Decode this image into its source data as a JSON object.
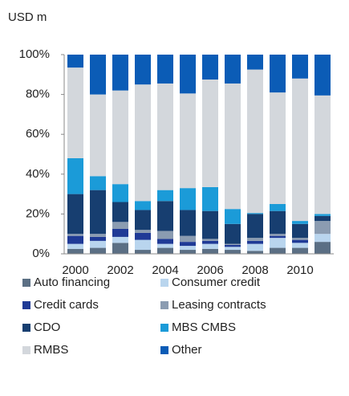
{
  "chart_data": {
    "type": "stacked_bar",
    "y_label": "USD m",
    "categories": [
      "2000",
      null,
      "2002",
      null,
      "2004",
      null,
      "2006",
      null,
      "2008",
      null,
      "2010",
      null
    ],
    "series": [
      {
        "name": "Auto financing",
        "color": "#5b6f84",
        "values": [
          2.5,
          3,
          5.5,
          2,
          3,
          2,
          2.5,
          2,
          1.5,
          3,
          3,
          6
        ]
      },
      {
        "name": "Consumer credit",
        "color": "#b9d5ee",
        "values": [
          2.5,
          3.5,
          3,
          5,
          2,
          2,
          2.5,
          1.5,
          3.5,
          5,
          2.5,
          4
        ]
      },
      {
        "name": "Credit cards",
        "color": "#1f3a96",
        "values": [
          4,
          2,
          4,
          3.5,
          2.5,
          2,
          1.5,
          1,
          1.5,
          1,
          1.5,
          0
        ]
      },
      {
        "name": "Leasing contracts",
        "color": "#8b9cb1",
        "values": [
          1,
          1.5,
          3.5,
          1.5,
          4,
          3,
          1,
          0.5,
          1.5,
          1,
          1,
          6.5
        ]
      },
      {
        "name": "CDO",
        "color": "#173e70",
        "values": [
          20,
          22,
          10,
          10,
          15,
          13,
          14,
          10,
          12,
          11.5,
          7,
          2.5
        ]
      },
      {
        "name": "MBS CMBS",
        "color": "#1b9bd8",
        "values": [
          18,
          7,
          9,
          4.5,
          5.5,
          11,
          12,
          7.5,
          0.5,
          3.5,
          1.5,
          1
        ]
      },
      {
        "name": "RMBS",
        "color": "#d3d7dc",
        "values": [
          45.5,
          41,
          47,
          58.5,
          53.5,
          47.5,
          54,
          63,
          72,
          56,
          71.5,
          59.5
        ]
      },
      {
        "name": "Other",
        "color": "#0b5cb6",
        "values": [
          6.5,
          20,
          18,
          15,
          14.5,
          19.5,
          12.5,
          14.5,
          7.5,
          19,
          12,
          20.5
        ]
      }
    ],
    "ylim": [
      0,
      100
    ],
    "yticks": [
      {
        "value": 0,
        "label": "0%"
      },
      {
        "value": 20,
        "label": "20%"
      },
      {
        "value": 40,
        "label": "40%"
      },
      {
        "value": 60,
        "label": "60%"
      },
      {
        "value": 80,
        "label": "80%"
      },
      {
        "value": 100,
        "label": "100%"
      }
    ]
  }
}
